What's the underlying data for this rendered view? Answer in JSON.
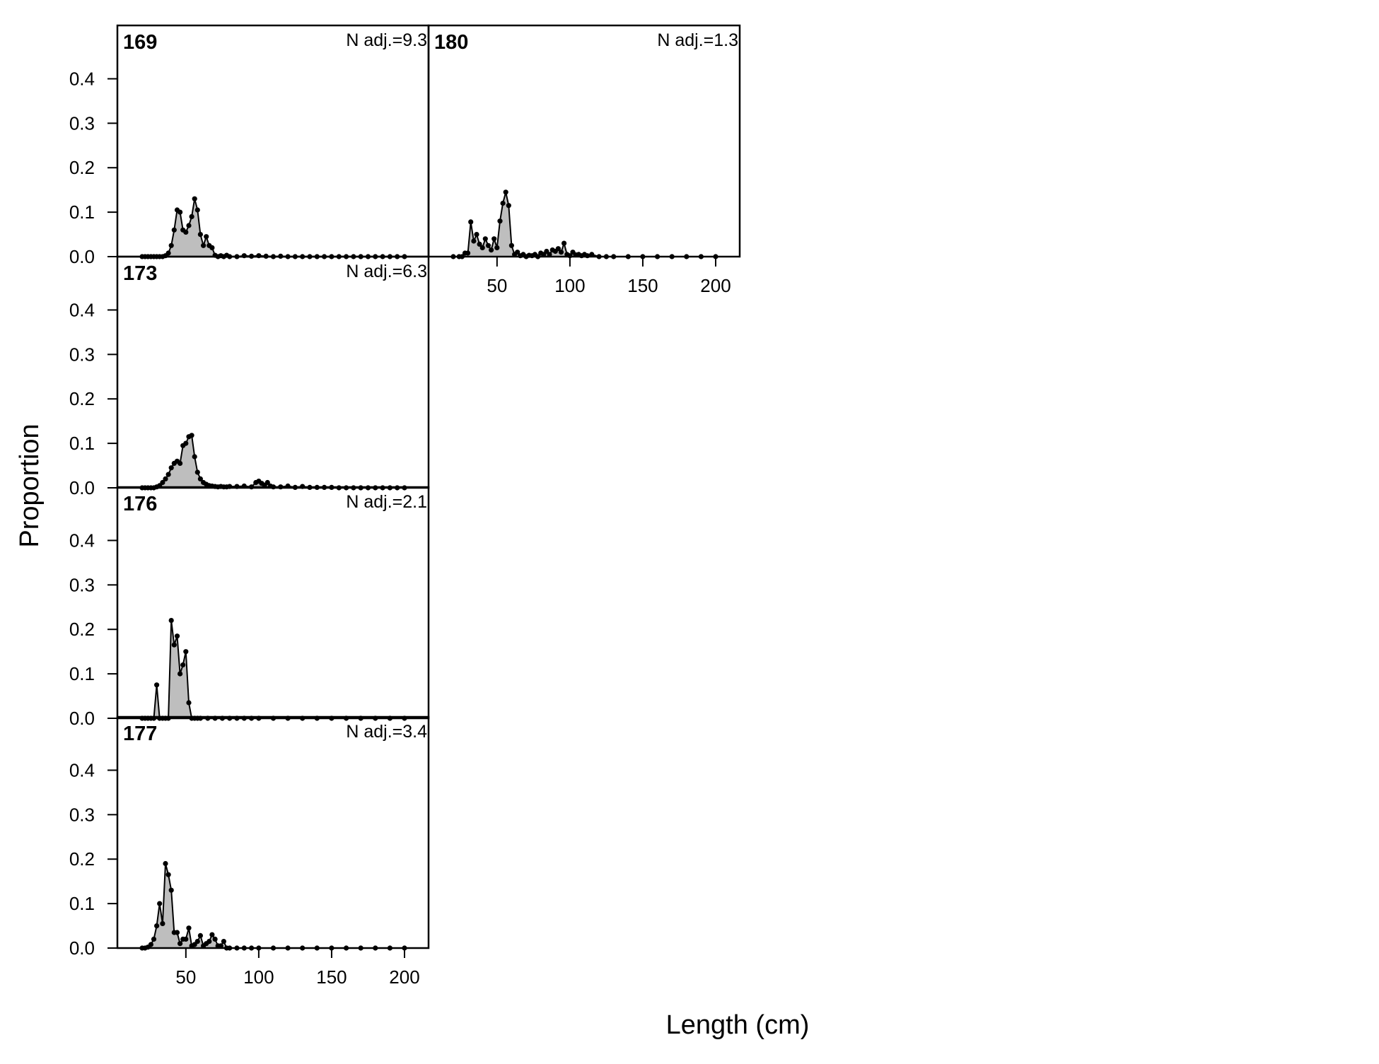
{
  "xlabel": "Length (cm)",
  "ylabel": "Proportion",
  "chart_data": {
    "type": "area",
    "xlabel": "Length (cm)",
    "ylabel": "Proportion",
    "xlim": [
      20,
      200
    ],
    "ylim": [
      0,
      0.45
    ],
    "x_ticks": [
      50,
      100,
      150,
      200
    ],
    "y_ticks": [
      0.0,
      0.1,
      0.2,
      0.3,
      0.4
    ],
    "x_tick_labels": [
      "50",
      "100",
      "150",
      "200"
    ],
    "y_tick_labels": [
      "0.0",
      "0.1",
      "0.2",
      "0.3",
      "0.4"
    ],
    "grid": false,
    "legend": "none",
    "fill_color": "#bebebe",
    "line_color": "#000000",
    "panels": [
      {
        "title": "169",
        "annotation": "N adj.=9.3",
        "x": [
          20,
          22,
          24,
          26,
          28,
          30,
          32,
          34,
          36,
          38,
          40,
          42,
          44,
          46,
          48,
          50,
          52,
          54,
          56,
          58,
          60,
          62,
          64,
          66,
          68,
          70,
          72,
          74,
          76,
          78,
          80,
          85,
          90,
          95,
          100,
          105,
          110,
          115,
          120,
          125,
          130,
          135,
          140,
          145,
          150,
          155,
          160,
          165,
          170,
          175,
          180,
          185,
          190,
          195,
          200
        ],
        "y": [
          0,
          0,
          0,
          0,
          0,
          0,
          0,
          0,
          0.002,
          0.008,
          0.025,
          0.06,
          0.105,
          0.1,
          0.06,
          0.055,
          0.07,
          0.09,
          0.13,
          0.105,
          0.05,
          0.025,
          0.045,
          0.025,
          0.02,
          0.003,
          0,
          0.002,
          0,
          0.003,
          0,
          0,
          0.002,
          0.001,
          0.002,
          0.001,
          0,
          0.001,
          0,
          0,
          0,
          0,
          0,
          0,
          0,
          0,
          0,
          0,
          0,
          0,
          0,
          0,
          0,
          0,
          0
        ]
      },
      {
        "title": "173",
        "annotation": "N adj.=6.3",
        "x": [
          20,
          22,
          24,
          26,
          28,
          30,
          32,
          34,
          36,
          38,
          40,
          42,
          44,
          46,
          48,
          50,
          52,
          54,
          56,
          58,
          60,
          62,
          64,
          66,
          68,
          70,
          72,
          74,
          76,
          78,
          80,
          85,
          90,
          95,
          98,
          100,
          102,
          104,
          106,
          108,
          110,
          115,
          120,
          125,
          130,
          135,
          140,
          145,
          150,
          155,
          160,
          165,
          170,
          175,
          180,
          185,
          190,
          195,
          200
        ],
        "y": [
          0,
          0,
          0,
          0,
          0,
          0.002,
          0.005,
          0.012,
          0.02,
          0.03,
          0.045,
          0.055,
          0.06,
          0.055,
          0.095,
          0.1,
          0.115,
          0.118,
          0.07,
          0.035,
          0.02,
          0.012,
          0.008,
          0.005,
          0.004,
          0.003,
          0.002,
          0.003,
          0.002,
          0.002,
          0.003,
          0.003,
          0.004,
          0.002,
          0.012,
          0.015,
          0.01,
          0.006,
          0.012,
          0.004,
          0.002,
          0.002,
          0.004,
          0.001,
          0.003,
          0.001,
          0.001,
          0.001,
          0.001,
          0,
          0,
          0,
          0,
          0,
          0,
          0,
          0,
          0,
          0
        ]
      },
      {
        "title": "176",
        "annotation": "N adj.=2.1",
        "x": [
          20,
          22,
          24,
          26,
          28,
          30,
          32,
          34,
          36,
          38,
          40,
          42,
          44,
          46,
          48,
          50,
          52,
          54,
          56,
          58,
          60,
          65,
          70,
          75,
          80,
          85,
          90,
          95,
          100,
          110,
          120,
          130,
          140,
          150,
          160,
          170,
          180,
          190,
          200
        ],
        "y": [
          0,
          0,
          0,
          0,
          0,
          0.075,
          0,
          0,
          0,
          0,
          0.22,
          0.165,
          0.185,
          0.1,
          0.12,
          0.15,
          0.035,
          0,
          0,
          0,
          0,
          0,
          0,
          0,
          0,
          0,
          0,
          0,
          0,
          0,
          0,
          0,
          0,
          0,
          0,
          0,
          0,
          0,
          0
        ]
      },
      {
        "title": "177",
        "annotation": "N adj.=3.4",
        "x": [
          20,
          22,
          24,
          26,
          28,
          30,
          32,
          34,
          36,
          38,
          40,
          42,
          44,
          46,
          48,
          50,
          52,
          54,
          56,
          58,
          60,
          62,
          64,
          66,
          68,
          70,
          72,
          74,
          76,
          78,
          80,
          85,
          90,
          95,
          100,
          110,
          120,
          130,
          140,
          150,
          160,
          170,
          180,
          190,
          200
        ],
        "y": [
          0,
          0,
          0.002,
          0.008,
          0.02,
          0.05,
          0.1,
          0.055,
          0.19,
          0.165,
          0.13,
          0.035,
          0.035,
          0.01,
          0.02,
          0.02,
          0.045,
          0.005,
          0.008,
          0.015,
          0.028,
          0.005,
          0.01,
          0.015,
          0.03,
          0.02,
          0.005,
          0.005,
          0.015,
          0,
          0,
          0,
          0,
          0,
          0,
          0,
          0,
          0,
          0,
          0,
          0,
          0,
          0,
          0,
          0
        ]
      },
      {
        "title": "180",
        "annotation": "N adj.=1.3",
        "x": [
          20,
          24,
          26,
          28,
          30,
          32,
          34,
          36,
          38,
          40,
          42,
          44,
          46,
          48,
          50,
          52,
          54,
          56,
          58,
          60,
          62,
          64,
          66,
          68,
          70,
          72,
          74,
          76,
          78,
          80,
          82,
          84,
          86,
          88,
          90,
          92,
          94,
          96,
          98,
          100,
          102,
          104,
          106,
          108,
          110,
          112,
          115,
          120,
          125,
          130,
          140,
          150,
          160,
          170,
          180,
          190,
          200
        ],
        "y": [
          0,
          0,
          0,
          0.008,
          0.008,
          0.078,
          0.035,
          0.05,
          0.028,
          0.02,
          0.04,
          0.025,
          0.015,
          0.04,
          0.02,
          0.08,
          0.12,
          0.145,
          0.115,
          0.025,
          0.005,
          0.01,
          0.002,
          0.005,
          0,
          0.003,
          0.002,
          0.005,
          0,
          0.008,
          0.005,
          0.012,
          0.005,
          0.015,
          0.012,
          0.018,
          0.01,
          0.03,
          0.005,
          0.002,
          0.01,
          0.004,
          0.005,
          0.002,
          0.005,
          0.002,
          0.005,
          0,
          0,
          0,
          0,
          0,
          0,
          0,
          0,
          0,
          0
        ]
      }
    ]
  }
}
